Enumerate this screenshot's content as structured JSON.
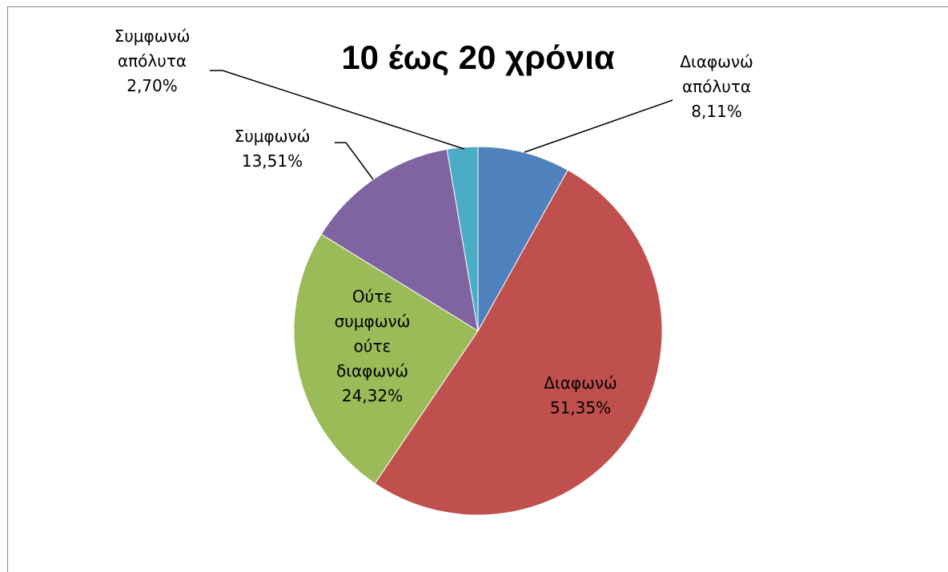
{
  "chart_data": {
    "type": "pie",
    "title": "10 έως 20 χρόνια",
    "categories": [
      "Διαφωνώ απόλυτα",
      "Διαφωνώ",
      "Ούτε συμφωνώ ούτε διαφωνώ",
      "Συμφωνώ",
      "Συμφωνώ απόλυτα"
    ],
    "values": [
      8.11,
      51.35,
      24.32,
      13.51,
      2.7
    ],
    "value_labels": [
      "8,11%",
      "51,35%",
      "24,32%",
      "13,51%",
      "2,70%"
    ],
    "colors": [
      "#4f81bd",
      "#c0504d",
      "#9bbb59",
      "#8064a2",
      "#4bacc6"
    ]
  }
}
